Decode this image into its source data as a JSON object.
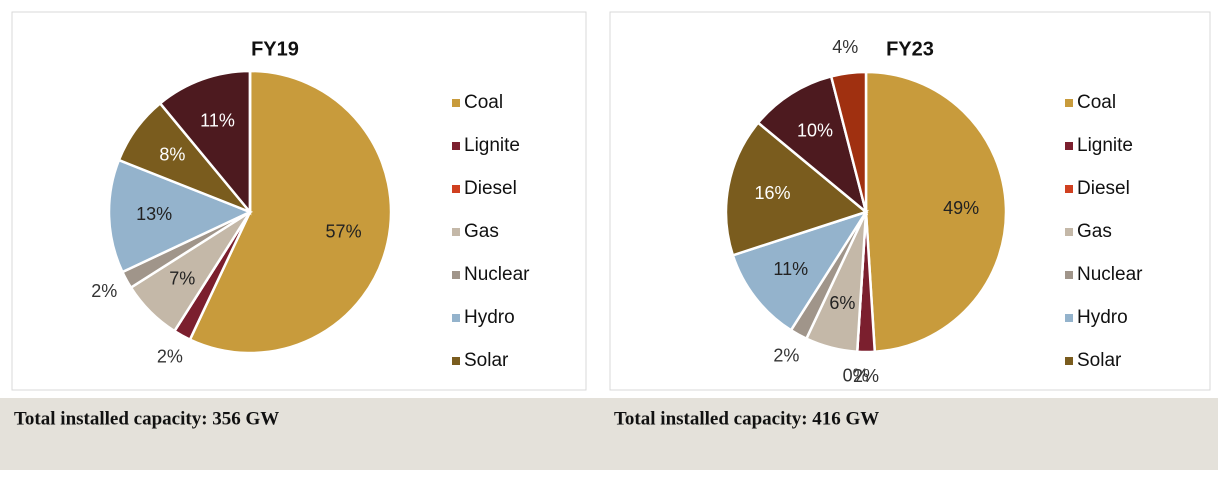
{
  "chart_data": [
    {
      "type": "pie",
      "title": "FY19",
      "categories": [
        "Coal",
        "Lignite",
        "Diesel",
        "Gas",
        "Nuclear",
        "Hydro",
        "Solar",
        null,
        null
      ],
      "values": [
        57,
        2,
        0,
        7,
        2,
        13,
        8,
        11,
        0
      ],
      "value_labels": [
        "57%",
        "2%",
        null,
        "7%",
        "2%",
        "13%",
        "8%",
        "11%",
        null
      ],
      "colors": [
        "#c89b3c",
        "#7b1f2e",
        "#d04020",
        "#c4b8a8",
        "#a0958a",
        "#94b3cc",
        "#7a5c1e",
        "#4d1a1f",
        "#a03010"
      ],
      "legend": "right"
    },
    {
      "type": "pie",
      "title": "FY23",
      "categories": [
        "Coal",
        "Lignite",
        "Diesel",
        "Gas",
        "Nuclear",
        "Hydro",
        "Solar",
        null,
        null
      ],
      "values": [
        49,
        2,
        0,
        6,
        2,
        11,
        16,
        10,
        4
      ],
      "value_labels": [
        "49%",
        "2%",
        "0%",
        "6%",
        "2%",
        "11%",
        "16%",
        "10%",
        "4%"
      ],
      "colors": [
        "#c89b3c",
        "#7b1f2e",
        "#d04020",
        "#c4b8a8",
        "#a0958a",
        "#94b3cc",
        "#7a5c1e",
        "#4d1a1f",
        "#a03010"
      ],
      "legend": "right"
    }
  ],
  "captions": [
    "Total installed capacity: 356 GW",
    "Total installed capacity: 416 GW"
  ]
}
